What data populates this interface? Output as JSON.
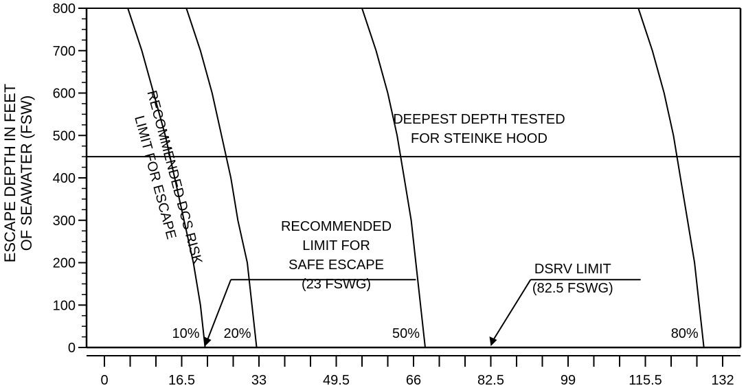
{
  "chart_data": {
    "type": "line",
    "title": "",
    "xlabel": "",
    "ylabel_lines": [
      "ESCAPE DEPTH IN FEET",
      "OF SEAWATER (FSW)"
    ],
    "xlim": [
      0,
      132
    ],
    "ylim": [
      0,
      800
    ],
    "x_ticks": [
      "0",
      "16.5",
      "33",
      "49.5",
      "66",
      "82.5",
      "99",
      "115.5",
      "132"
    ],
    "y_ticks": [
      "0",
      "100",
      "200",
      "300",
      "400",
      "500",
      "600",
      "700",
      "800"
    ],
    "grid": false,
    "series": [
      {
        "name": "10%",
        "points": [
          [
            5,
            800
          ],
          [
            8,
            700
          ],
          [
            10.5,
            600
          ],
          [
            13,
            500
          ],
          [
            15,
            400
          ],
          [
            17,
            300
          ],
          [
            19,
            200
          ],
          [
            20.5,
            100
          ],
          [
            21.5,
            0
          ]
        ]
      },
      {
        "name": "20%",
        "points": [
          [
            17.5,
            800
          ],
          [
            20.5,
            700
          ],
          [
            23,
            600
          ],
          [
            25,
            500
          ],
          [
            27,
            400
          ],
          [
            28.5,
            300
          ],
          [
            30.5,
            200
          ],
          [
            31.5,
            100
          ],
          [
            32.5,
            0
          ]
        ]
      },
      {
        "name": "50%",
        "points": [
          [
            55,
            800
          ],
          [
            58,
            700
          ],
          [
            60.5,
            600
          ],
          [
            62.5,
            500
          ],
          [
            64,
            400
          ],
          [
            65.5,
            300
          ],
          [
            66.5,
            200
          ],
          [
            67.5,
            100
          ],
          [
            68.5,
            0
          ]
        ]
      },
      {
        "name": "80%",
        "points": [
          [
            114,
            800
          ],
          [
            117,
            700
          ],
          [
            119.5,
            600
          ],
          [
            121.5,
            500
          ],
          [
            123,
            400
          ],
          [
            124.5,
            300
          ],
          [
            126,
            200
          ],
          [
            127,
            100
          ],
          [
            128,
            0
          ]
        ]
      }
    ],
    "horizontal_line": {
      "y": 450
    },
    "annotations": {
      "dcs_label": [
        "RECOMMENDED DCS RISK",
        "LIMIT FOR ESCAPE"
      ],
      "deepest_tested": [
        "DEEPEST DEPTH TESTED",
        "FOR STEINKE HOOD"
      ],
      "safe_escape": [
        "RECOMMENDED",
        "LIMIT FOR",
        "SAFE ESCAPE",
        "(23 FSWG)"
      ],
      "dsrv_limit": [
        "DSRV LIMIT",
        "(82.5 FSWG)"
      ],
      "safe_escape_x": 21.5,
      "dsrv_limit_x": 82.5
    }
  }
}
